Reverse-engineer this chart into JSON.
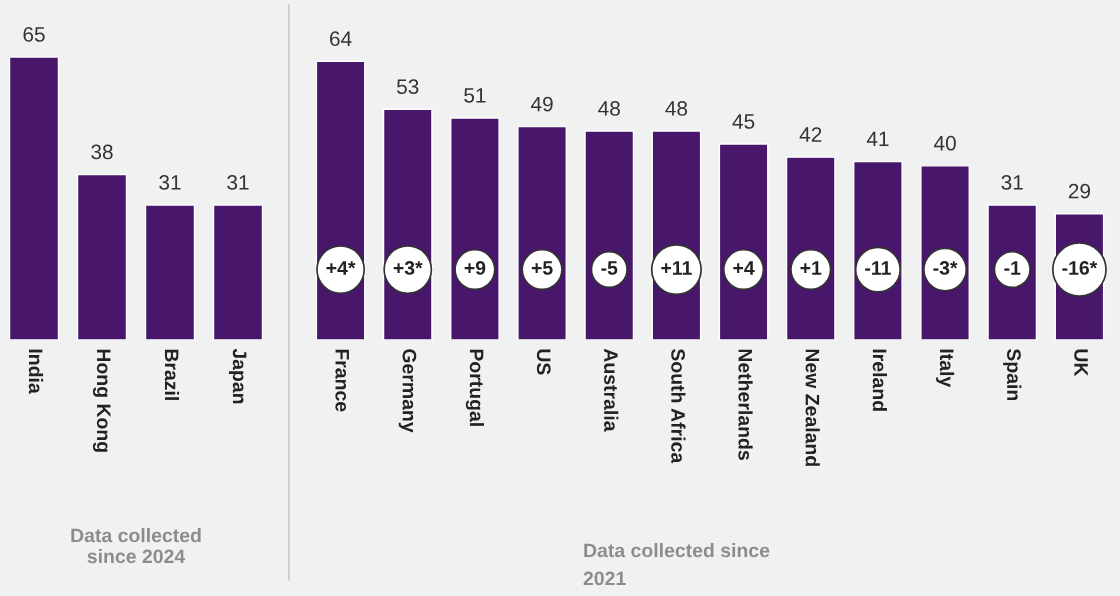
{
  "chart_data": [
    {
      "type": "bar",
      "categories": [
        "India",
        "Hong Kong",
        "Brazil",
        "Japan"
      ],
      "values": [
        65,
        38,
        31,
        31
      ],
      "color": "#48166a",
      "data_labels": true,
      "tick_labels": "x",
      "grid": false,
      "legend": false,
      "annotations": [
        "Data collected\nsince 2024"
      ]
    },
    {
      "type": "bar",
      "categories": [
        "France",
        "Germany",
        "Portugal",
        "US",
        "Australia",
        "South Africa",
        "Netherlands",
        "New Zealand",
        "Ireland",
        "Italy",
        "Spain",
        "UK"
      ],
      "values": [
        64,
        53,
        51,
        49,
        48,
        48,
        45,
        42,
        41,
        40,
        31,
        29
      ],
      "color": "#48166a",
      "data_labels": true,
      "tick_labels": "x",
      "grid": false,
      "legend": false,
      "annotations": [
        "+4*",
        "+3*",
        "+9",
        "+5",
        "-5",
        "+11",
        "+4",
        "+1",
        "-11",
        "-3*",
        "-1",
        "-16*",
        "Data collected since\n2021"
      ]
    }
  ]
}
